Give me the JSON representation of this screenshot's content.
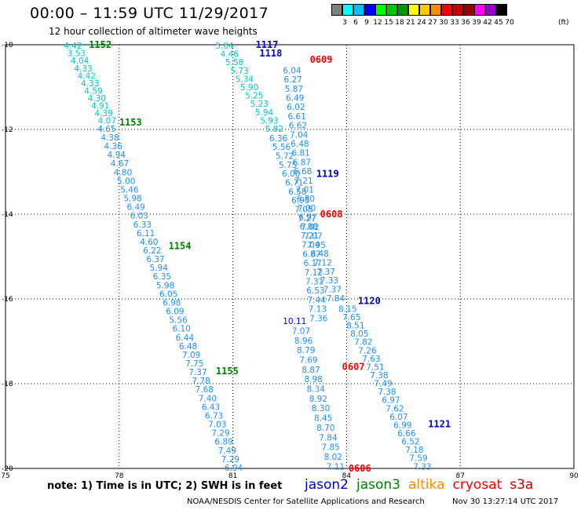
{
  "header": {
    "title": "00:00 – 11:59 UTC 11/29/2017",
    "subtitle": "12 hour collection of altimeter wave heights"
  },
  "color_scale": {
    "colors": [
      "#808080",
      "#00ffff",
      "#00bfff",
      "#0000ff",
      "#00ff00",
      "#00c800",
      "#009600",
      "#ffff00",
      "#ffc800",
      "#ff8c00",
      "#ff0000",
      "#c80000",
      "#960000",
      "#ff00ff",
      "#9600c8",
      "#000000"
    ],
    "labels": [
      "3",
      "6",
      "9",
      "12",
      "15",
      "18",
      "21",
      "24",
      "27",
      "30",
      "33",
      "36",
      "39",
      "42",
      "45",
      "70"
    ],
    "unit": "(ft)"
  },
  "map": {
    "lon_ticks": [
      "75",
      "78",
      "81",
      "84",
      "87",
      "90"
    ],
    "lat_ticks": [
      "-10",
      "-12",
      "-14",
      "-16",
      "-18",
      "-20"
    ],
    "lon_range": [
      75,
      90
    ],
    "lat_range": [
      -10,
      -20
    ]
  },
  "tracks": [
    {
      "satellite": "jason3",
      "color": "#00c8c8",
      "lon_start": 76.78,
      "lat_start": -10.02,
      "lon_end": 77.68,
      "lat_end": -11.79,
      "values": [
        "4.42",
        "3.53",
        "4.04",
        "4.33",
        "4.42",
        "4.33",
        "4.59",
        "4.30",
        "4.91",
        "4.39",
        "4.07"
      ]
    },
    {
      "satellite": "jason3",
      "color": "#1e90ff",
      "lon_start": 77.67,
      "lat_start": -11.98,
      "lon_end": 81.02,
      "lat_end": -19.98,
      "values": [
        "4.65",
        "4.38",
        "4.36",
        "4.94",
        "4.67",
        "4.80",
        "5.00",
        "5.46",
        "5.98",
        "6.49",
        "6.03",
        "6.33",
        "6.11",
        "4.60",
        "6.22",
        "6.37",
        "5.94",
        "6.35",
        "5.98",
        "6.05",
        "6.98",
        "6.09",
        "5.56",
        "6.10",
        "6.44",
        "6.48",
        "7.09",
        "7.75",
        "7.37",
        "7.78",
        "7.68",
        "7.40",
        "6.43",
        "6.73",
        "7.03",
        "7.29",
        "6.89",
        "7.49",
        "7.29",
        "6.94"
      ]
    },
    {
      "satellite": "jason3",
      "color": "#00c8c8",
      "lon_start": 80.78,
      "lat_start": -10.02,
      "lon_end": 82.09,
      "lat_end": -11.98,
      "values": [
        "5.64",
        "4.46",
        "5.58",
        "5.73",
        "5.34",
        "5.90",
        "5.25",
        "5.23",
        "5.94",
        "5.93",
        "5.82"
      ]
    },
    {
      "satellite": "jason3",
      "color": "#1e90ff",
      "lon_start": 82.2,
      "lat_start": -12.2,
      "lon_end": 83.71,
      "lat_end": -15.98,
      "values": [
        "6.36",
        "5.56",
        "5.72",
        "5.75",
        "6.00",
        "6.71",
        "6.58",
        "6.95",
        "7.05",
        "7.27",
        "7.02",
        "7.07",
        "7.95",
        "6.48",
        "7.12",
        "7.37",
        "7.33",
        "7.37",
        "7.84"
      ]
    },
    {
      "satellite": "jason2",
      "color": "#1e90ff",
      "lon_start": 82.56,
      "lat_start": -10.6,
      "lon_end": 83.26,
      "lat_end": -16.45,
      "values": [
        "6.04",
        "6.27",
        "5.87",
        "6.49",
        "6.02",
        "6.61",
        "6.62",
        "7.04",
        "6.48",
        "6.81",
        "6.87",
        "6.68",
        "7.21",
        "7.01",
        "6.80",
        "7.00",
        "6.97",
        "6.88",
        "7.21",
        "7.04",
        "6.87",
        "6.17",
        "7.12",
        "7.31",
        "6.53",
        "7.44",
        "7.13",
        "7.36"
      ]
    },
    {
      "satellite": "jason3",
      "color": "#0000ff",
      "lon_start": 82.63,
      "lat_start": -16.52,
      "lon_end": 82.63,
      "lat_end": -16.52,
      "values": [
        "10.11"
      ]
    },
    {
      "satellite": "jason3",
      "color": "#1e90ff",
      "lon_start": 82.8,
      "lat_start": -16.75,
      "lon_end": 83.71,
      "lat_end": -19.95,
      "values": [
        "7.07",
        "8.96",
        "8.79",
        "7.69",
        "8.87",
        "8.98",
        "8.34",
        "8.92",
        "8.30",
        "8.45",
        "8.70",
        "7.84",
        "7.85",
        "8.02",
        "7.11"
      ]
    },
    {
      "satellite": "jason2",
      "color": "#1e90ff",
      "lon_start": 84.03,
      "lat_start": -16.23,
      "lon_end": 86.0,
      "lat_end": -19.95,
      "values": [
        "8.15",
        "7.65",
        "8.51",
        "8.05",
        "7.82",
        "7.26",
        "7.63",
        "7.51",
        "7.38",
        "7.49",
        "7.38",
        "6.97",
        "7.62",
        "6.07",
        "6.99",
        "6.66",
        "6.52",
        "7.18",
        "7.59",
        "7.33"
      ]
    }
  ],
  "labels": [
    {
      "text": "1152",
      "color": "#008000",
      "lon": 77.5,
      "lat": -10.0
    },
    {
      "text": "1153",
      "color": "#008000",
      "lon": 78.3,
      "lat": -11.83
    },
    {
      "text": "1154",
      "color": "#008000",
      "lon": 79.6,
      "lat": -14.75
    },
    {
      "text": "1155",
      "color": "#008000",
      "lon": 80.85,
      "lat": -17.7
    },
    {
      "text": "1117",
      "color": "#0000c8",
      "lon": 81.9,
      "lat": -10.0
    },
    {
      "text": "1118",
      "color": "#0000c8",
      "lon": 82.0,
      "lat": -10.2
    },
    {
      "text": "0609",
      "color": "#ff0000",
      "lon": 83.33,
      "lat": -10.35
    },
    {
      "text": "1119",
      "color": "#0000c8",
      "lon": 83.5,
      "lat": -13.05
    },
    {
      "text": "0608",
      "color": "#ff0000",
      "lon": 83.6,
      "lat": -14.0
    },
    {
      "text": "1120",
      "color": "#0000c8",
      "lon": 84.6,
      "lat": -16.05
    },
    {
      "text": "0607",
      "color": "#ff0000",
      "lon": 84.18,
      "lat": -17.6
    },
    {
      "text": "1121",
      "color": "#0000c8",
      "lon": 86.45,
      "lat": -18.95
    },
    {
      "text": "0606",
      "color": "#ff0000",
      "lon": 84.35,
      "lat": -20.0
    }
  ],
  "footer": {
    "note": "note:  1) Time is in UTC;  2) SWH is in feet",
    "satellites": [
      {
        "name": "jason2",
        "color": "#0000c8"
      },
      {
        "name": "jason3",
        "color": "#008000"
      },
      {
        "name": "altika",
        "color": "#ff8c00"
      },
      {
        "name": "cryosat",
        "color": "#ff0000"
      },
      {
        "name": "s3a",
        "color": "#c80000"
      }
    ],
    "credit": "NOAA/NESDIS Center for Satellite Applications and Research",
    "timestamp": "Nov 30 13:27:14 UTC 2017"
  }
}
